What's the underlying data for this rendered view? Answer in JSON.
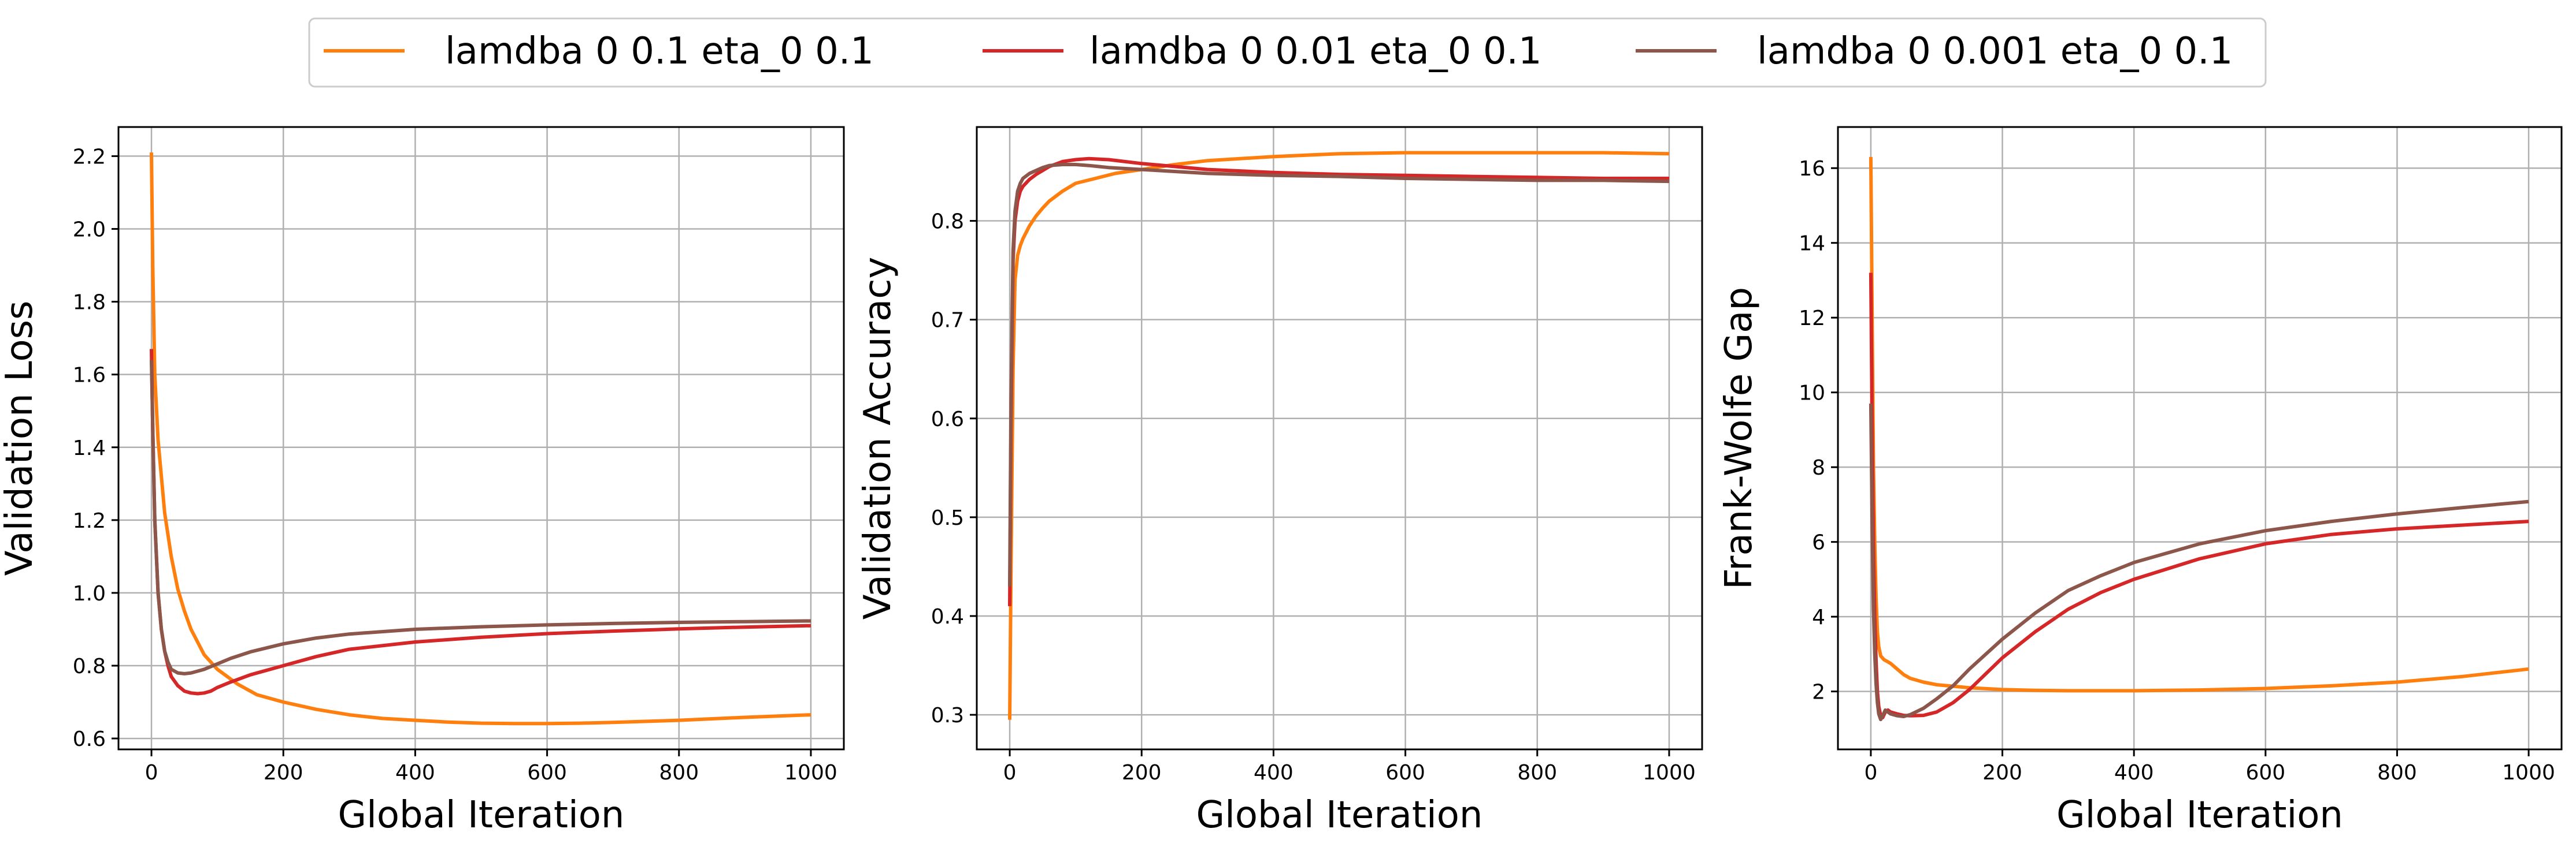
{
  "legend": {
    "entries": [
      {
        "label": "lamdba 0 0.1 eta_0 0.1",
        "color": "#ff7f0e"
      },
      {
        "label": "lamdba 0 0.01 eta_0 0.1",
        "color": "#d62728"
      },
      {
        "label": "lamdba 0 0.001 eta_0 0.1",
        "color": "#8c564b"
      }
    ],
    "placement": "top-center"
  },
  "chart_data": [
    {
      "type": "line",
      "title": "",
      "xlabel": "Global Iteration",
      "ylabel": "Validation Loss",
      "xlim": [
        -50,
        1050
      ],
      "ylim": [
        0.57,
        2.28
      ],
      "xticks": [
        0,
        200,
        400,
        600,
        800,
        1000
      ],
      "yticks": [
        0.6,
        0.8,
        1.0,
        1.2,
        1.4,
        1.6,
        1.8,
        2.0,
        2.2
      ],
      "ytick_labels": [
        "0.6",
        "0.8",
        "1.0",
        "1.2",
        "1.4",
        "1.6",
        "1.8",
        "2.0",
        "2.2"
      ],
      "grid": true,
      "series": [
        {
          "name": "lamdba 0 0.1 eta_0 0.1",
          "color": "#ff7f0e",
          "x": [
            0,
            2,
            5,
            10,
            20,
            30,
            40,
            50,
            60,
            80,
            100,
            130,
            160,
            200,
            250,
            300,
            350,
            400,
            450,
            500,
            550,
            600,
            650,
            700,
            800,
            900,
            1000
          ],
          "y": [
            2.21,
            1.9,
            1.6,
            1.42,
            1.22,
            1.1,
            1.01,
            0.95,
            0.9,
            0.83,
            0.79,
            0.75,
            0.72,
            0.7,
            0.68,
            0.665,
            0.655,
            0.65,
            0.645,
            0.642,
            0.641,
            0.641,
            0.642,
            0.644,
            0.65,
            0.658,
            0.665
          ]
        },
        {
          "name": "lamdba 0 0.01 eta_0 0.1",
          "color": "#d62728",
          "x": [
            0,
            2,
            5,
            10,
            15,
            20,
            25,
            30,
            40,
            50,
            60,
            70,
            80,
            90,
            100,
            120,
            150,
            200,
            250,
            300,
            400,
            500,
            600,
            700,
            800,
            900,
            1000
          ],
          "y": [
            1.67,
            1.45,
            1.2,
            1.0,
            0.9,
            0.84,
            0.8,
            0.77,
            0.745,
            0.73,
            0.725,
            0.723,
            0.725,
            0.73,
            0.74,
            0.755,
            0.775,
            0.8,
            0.825,
            0.845,
            0.865,
            0.878,
            0.888,
            0.895,
            0.901,
            0.906,
            0.91
          ]
        },
        {
          "name": "lamdba 0 0.001 eta_0 0.1",
          "color": "#8c564b",
          "x": [
            0,
            2,
            5,
            10,
            15,
            20,
            25,
            30,
            40,
            50,
            60,
            70,
            80,
            100,
            120,
            150,
            200,
            250,
            300,
            400,
            500,
            600,
            700,
            800,
            900,
            1000
          ],
          "y": [
            1.64,
            1.45,
            1.2,
            1.0,
            0.9,
            0.84,
            0.81,
            0.79,
            0.78,
            0.778,
            0.78,
            0.785,
            0.79,
            0.805,
            0.82,
            0.838,
            0.86,
            0.876,
            0.887,
            0.9,
            0.907,
            0.912,
            0.916,
            0.919,
            0.921,
            0.923
          ]
        }
      ]
    },
    {
      "type": "line",
      "title": "",
      "xlabel": "Global Iteration",
      "ylabel": "Validation Accuracy",
      "xlim": [
        -50,
        1050
      ],
      "ylim": [
        0.265,
        0.895
      ],
      "xticks": [
        0,
        200,
        400,
        600,
        800,
        1000
      ],
      "yticks": [
        0.3,
        0.4,
        0.5,
        0.6,
        0.7,
        0.8
      ],
      "ytick_labels": [
        "0.3",
        "0.4",
        "0.5",
        "0.6",
        "0.7",
        "0.8"
      ],
      "grid": true,
      "series": [
        {
          "name": "lamdba 0 0.1 eta_0 0.1",
          "color": "#ff7f0e",
          "x": [
            0,
            2,
            5,
            8,
            12,
            16,
            20,
            30,
            40,
            50,
            60,
            80,
            100,
            130,
            160,
            200,
            250,
            300,
            400,
            500,
            600,
            700,
            800,
            900,
            1000
          ],
          "y": [
            0.295,
            0.45,
            0.65,
            0.74,
            0.765,
            0.775,
            0.782,
            0.795,
            0.805,
            0.813,
            0.82,
            0.83,
            0.838,
            0.843,
            0.848,
            0.852,
            0.857,
            0.861,
            0.865,
            0.868,
            0.869,
            0.869,
            0.869,
            0.869,
            0.868
          ]
        },
        {
          "name": "lamdba 0 0.01 eta_0 0.1",
          "color": "#d62728",
          "x": [
            0,
            2,
            5,
            8,
            12,
            16,
            20,
            30,
            40,
            50,
            60,
            80,
            100,
            120,
            150,
            200,
            250,
            300,
            400,
            500,
            600,
            700,
            800,
            900,
            1000
          ],
          "y": [
            0.41,
            0.6,
            0.76,
            0.8,
            0.82,
            0.83,
            0.835,
            0.842,
            0.847,
            0.851,
            0.855,
            0.86,
            0.862,
            0.863,
            0.862,
            0.858,
            0.855,
            0.852,
            0.849,
            0.847,
            0.846,
            0.845,
            0.844,
            0.843,
            0.843
          ]
        },
        {
          "name": "lamdba 0 0.001 eta_0 0.1",
          "color": "#8c564b",
          "x": [
            0,
            2,
            5,
            8,
            12,
            16,
            20,
            30,
            40,
            50,
            60,
            80,
            100,
            120,
            150,
            200,
            250,
            300,
            400,
            500,
            600,
            700,
            800,
            900,
            1000
          ],
          "y": [
            0.43,
            0.62,
            0.77,
            0.81,
            0.83,
            0.838,
            0.843,
            0.848,
            0.851,
            0.854,
            0.856,
            0.857,
            0.857,
            0.856,
            0.854,
            0.852,
            0.85,
            0.848,
            0.846,
            0.845,
            0.843,
            0.842,
            0.841,
            0.841,
            0.84
          ]
        }
      ]
    },
    {
      "type": "line",
      "title": "",
      "xlabel": "Global Iteration",
      "ylabel": "Frank-Wolfe Gap",
      "xlim": [
        -50,
        1050
      ],
      "ylim": [
        0.45,
        17.1
      ],
      "xticks": [
        0,
        200,
        400,
        600,
        800,
        1000
      ],
      "yticks": [
        2,
        4,
        6,
        8,
        10,
        12,
        14,
        16
      ],
      "ytick_labels": [
        "2",
        "4",
        "6",
        "8",
        "10",
        "12",
        "14",
        "16"
      ],
      "grid": true,
      "series": [
        {
          "name": "lamdba 0 0.1 eta_0 0.1",
          "color": "#ff7f0e",
          "x": [
            0,
            2,
            4,
            6,
            8,
            10,
            12,
            15,
            20,
            25,
            30,
            40,
            50,
            60,
            80,
            100,
            150,
            200,
            250,
            300,
            400,
            500,
            600,
            700,
            800,
            900,
            1000
          ],
          "y": [
            16.3,
            12.0,
            8.0,
            6.0,
            4.5,
            3.6,
            3.2,
            2.95,
            2.85,
            2.8,
            2.75,
            2.6,
            2.45,
            2.35,
            2.25,
            2.18,
            2.1,
            2.05,
            2.03,
            2.02,
            2.02,
            2.04,
            2.08,
            2.15,
            2.25,
            2.4,
            2.6
          ]
        },
        {
          "name": "lamdba 0 0.01 eta_0 0.1",
          "color": "#d62728",
          "x": [
            0,
            2,
            4,
            6,
            8,
            10,
            12,
            15,
            18,
            22,
            26,
            30,
            40,
            50,
            60,
            80,
            100,
            125,
            150,
            200,
            250,
            300,
            350,
            400,
            500,
            600,
            700,
            800,
            900,
            1000
          ],
          "y": [
            13.2,
            9.0,
            5.8,
            4.0,
            2.8,
            2.0,
            1.6,
            1.35,
            1.3,
            1.45,
            1.5,
            1.45,
            1.4,
            1.36,
            1.35,
            1.36,
            1.45,
            1.7,
            2.05,
            2.9,
            3.6,
            4.2,
            4.65,
            5.0,
            5.55,
            5.95,
            6.2,
            6.35,
            6.45,
            6.55
          ]
        },
        {
          "name": "lamdba 0 0.001 eta_0 0.1",
          "color": "#8c564b",
          "x": [
            0,
            2,
            4,
            6,
            8,
            10,
            12,
            15,
            18,
            22,
            26,
            30,
            40,
            50,
            60,
            80,
            100,
            125,
            150,
            200,
            250,
            300,
            350,
            400,
            500,
            600,
            700,
            800,
            900,
            1000
          ],
          "y": [
            9.7,
            6.5,
            4.2,
            3.0,
            2.2,
            1.7,
            1.4,
            1.25,
            1.35,
            1.5,
            1.45,
            1.4,
            1.35,
            1.33,
            1.38,
            1.55,
            1.8,
            2.15,
            2.6,
            3.4,
            4.1,
            4.7,
            5.1,
            5.45,
            5.95,
            6.3,
            6.55,
            6.75,
            6.92,
            7.08
          ]
        }
      ]
    }
  ]
}
